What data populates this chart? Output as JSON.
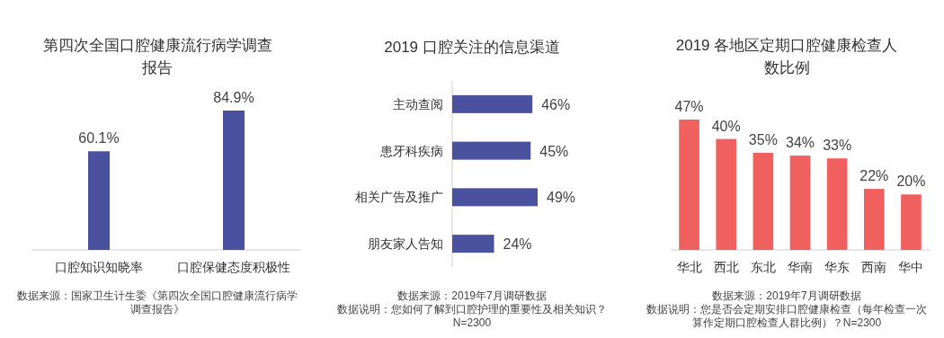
{
  "chart_data": [
    {
      "type": "bar",
      "title": "第四次全国口腔健康流行病学调查报告",
      "categories": [
        "口腔知识知晓率",
        "口腔保健态度积极性"
      ],
      "values": [
        60.1,
        84.9
      ],
      "data_labels": true,
      "value_labels": [
        "60.1%",
        "84.9%"
      ],
      "color": "#4a52a0",
      "annotations": [
        "数据来源：国家卫生计生委《第四次全国口腔健康流行病学调查报告》"
      ]
    },
    {
      "type": "bar",
      "orientation": "horizontal",
      "title": "2019 口腔关注的信息渠道",
      "categories": [
        "主动查阅",
        "患牙科疾病",
        "相关广告及推广",
        "朋友家人告知"
      ],
      "values": [
        46,
        45,
        49,
        24
      ],
      "data_labels": true,
      "value_labels": [
        "46%",
        "45%",
        "49%",
        "24%"
      ],
      "color": "#4a52a0",
      "annotations": [
        "数据来源：2019年7月调研数据",
        "数据说明：您如何了解到口腔护理的重要性及相关知识？",
        "N=2300"
      ]
    },
    {
      "type": "bar",
      "title": "2019 各地区定期口腔健康检查人数比例",
      "categories": [
        "华北",
        "西北",
        "东北",
        "华南",
        "华东",
        "西南",
        "华中"
      ],
      "values": [
        47,
        40,
        35,
        34,
        33,
        22,
        20
      ],
      "data_labels": true,
      "value_labels": [
        "47%",
        "40%",
        "35%",
        "34%",
        "33%",
        "22%",
        "20%"
      ],
      "color": "#f0605f",
      "annotations": [
        "数据来源：2019年7月调研数据",
        "数据说明：您是否会定期安排口腔健康检查（每年检查一次算作定期口腔检查人群比例）？N=2300"
      ]
    }
  ]
}
